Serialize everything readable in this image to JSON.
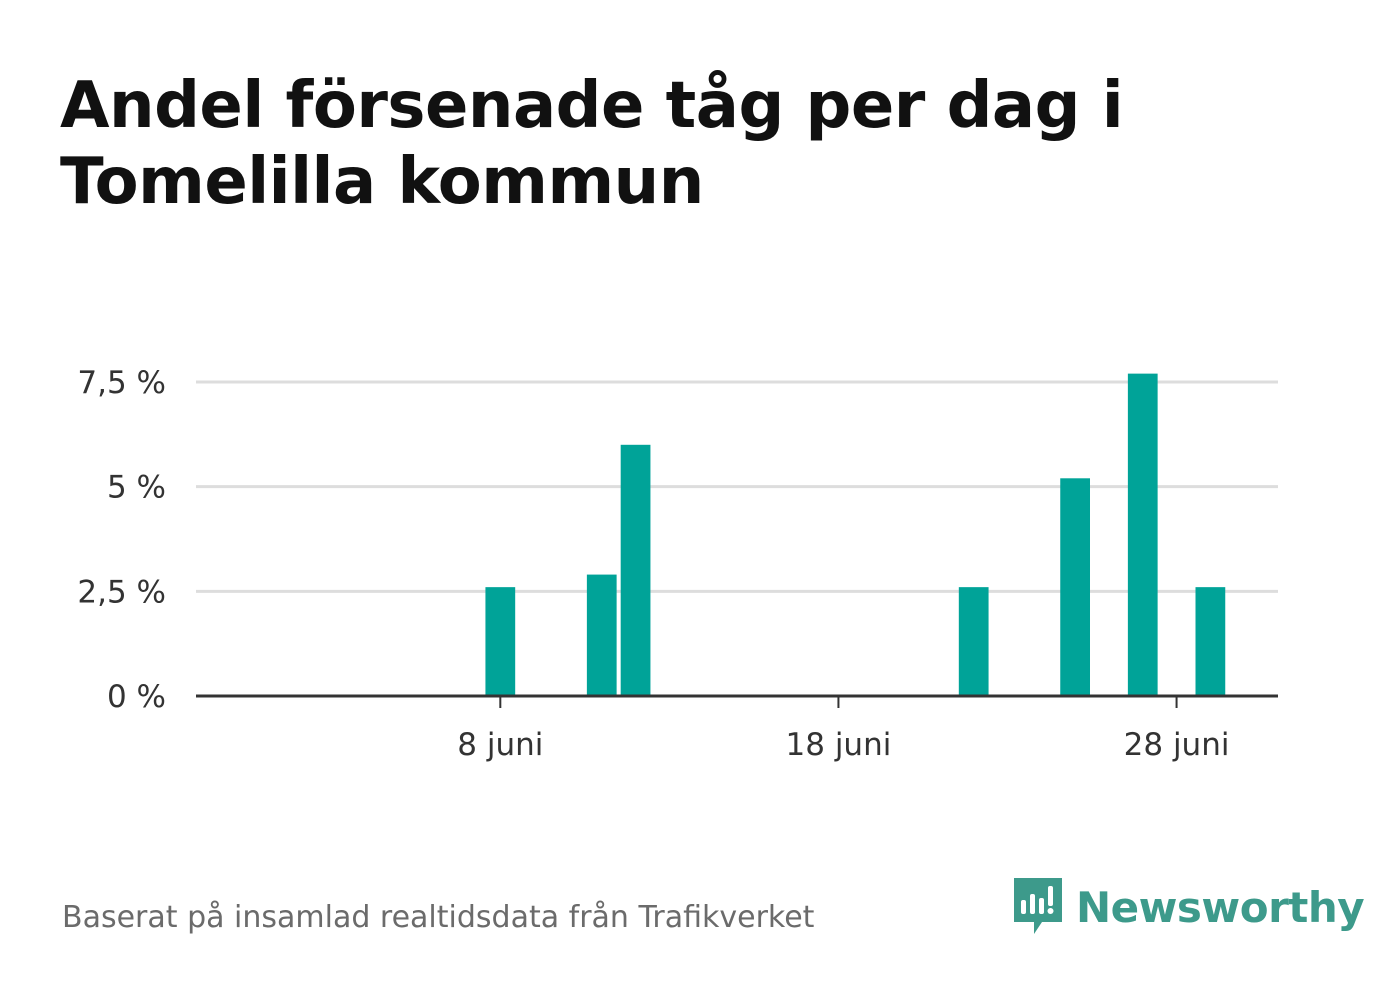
{
  "title": "Andel försenade tåg per dag i Tomelilla kommun",
  "source": "Baserat på insamlad realtidsdata från Trafikverket",
  "brand": {
    "name": "Newsworthy",
    "color": "#3d9a8b"
  },
  "chart_data": {
    "type": "bar",
    "title": "Andel försenade tåg per dag i Tomelilla kommun",
    "xlabel": "",
    "ylabel": "",
    "x_domain_days": [
      -1,
      31
    ],
    "ylim": [
      0,
      7.5
    ],
    "yticks": [
      {
        "value": 0,
        "label": "0 %"
      },
      {
        "value": 2.5,
        "label": "2,5 %"
      },
      {
        "value": 5,
        "label": "5 %"
      },
      {
        "value": 7.5,
        "label": "7,5 %"
      }
    ],
    "xticks": [
      {
        "day": 8,
        "label": "8 juni"
      },
      {
        "day": 18,
        "label": "18 juni"
      },
      {
        "day": 28,
        "label": "28 juni"
      }
    ],
    "series": [
      {
        "color": "#00a398",
        "points": [
          {
            "day": 8,
            "value": 2.6
          },
          {
            "day": 11,
            "value": 2.9
          },
          {
            "day": 12,
            "value": 6.0
          },
          {
            "day": 22,
            "value": 2.6
          },
          {
            "day": 25,
            "value": 5.2
          },
          {
            "day": 27,
            "value": 7.7
          },
          {
            "day": 29,
            "value": 2.6
          }
        ]
      }
    ],
    "grid": true,
    "legend": "none"
  }
}
